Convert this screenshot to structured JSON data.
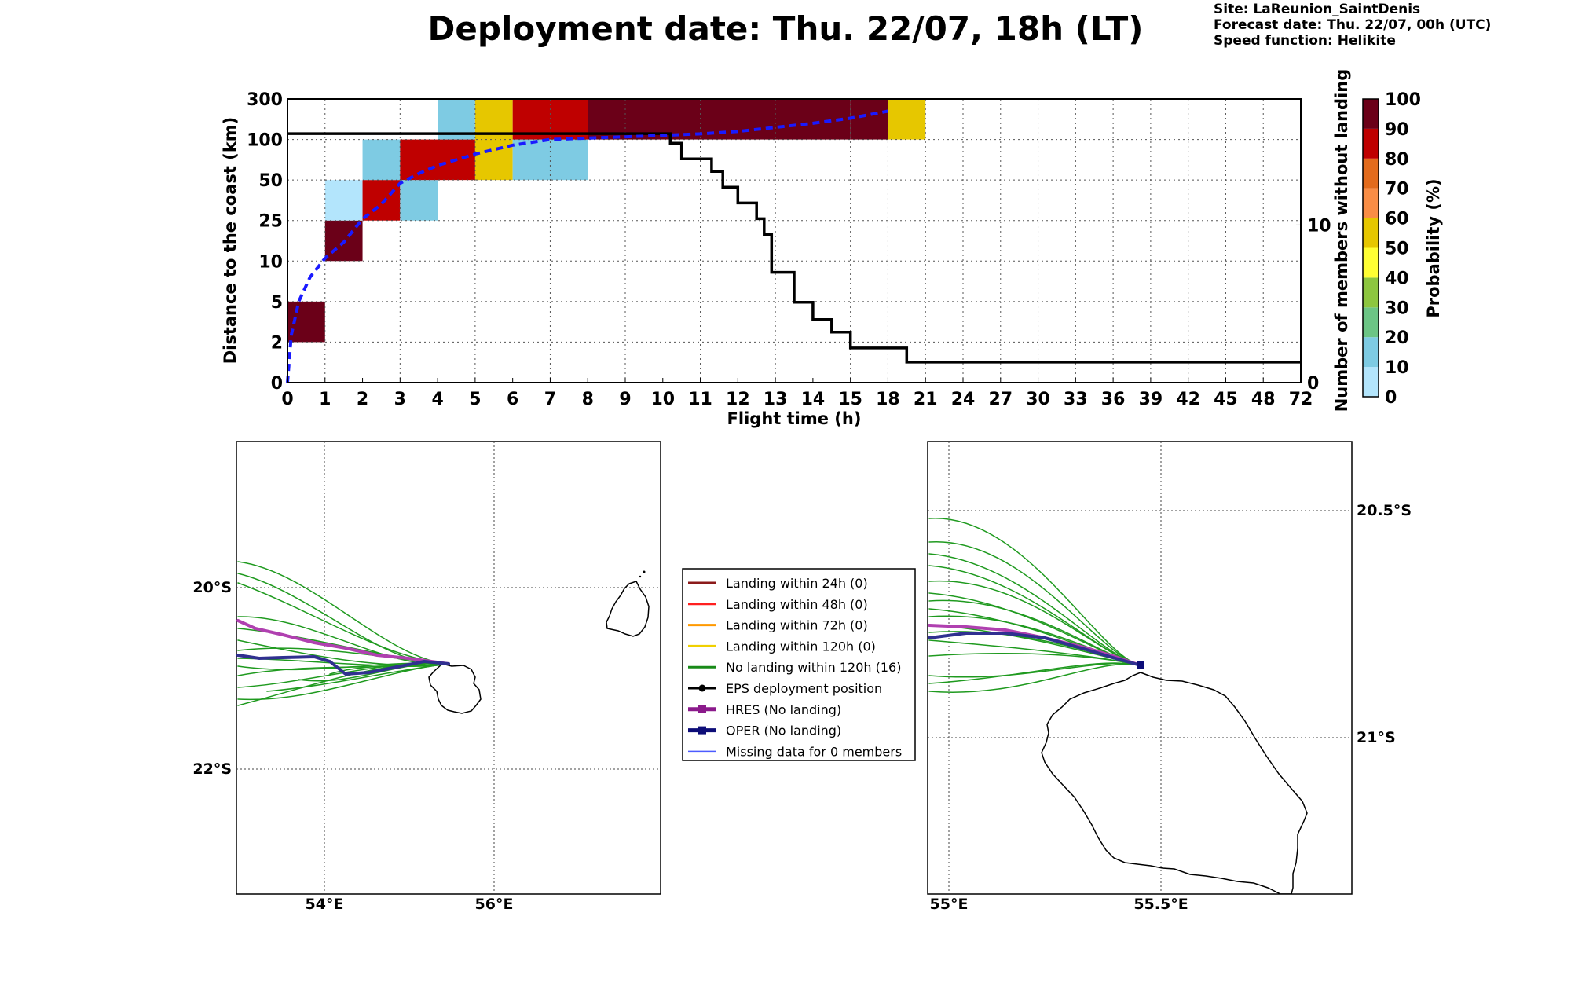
{
  "title": "Deployment date: Thu. 22/07, 18h (LT)",
  "info": {
    "site": "Site: LaReunion_SaintDenis",
    "forecast": "Forecast date: Thu. 22/07, 00h (UTC)",
    "speed": "Speed function: Helikite"
  },
  "chart_data": [
    {
      "type": "heatmap",
      "xlabel": "Flight time (h)",
      "ylabel": "Distance to the coast (km)",
      "y2label": "Number of members without landing",
      "x_ticks": [
        "0",
        "1",
        "2",
        "3",
        "4",
        "5",
        "6",
        "7",
        "8",
        "9",
        "10",
        "11",
        "12",
        "13",
        "14",
        "15",
        "18",
        "21",
        "24",
        "27",
        "30",
        "33",
        "36",
        "39",
        "42",
        "45",
        "48",
        "72"
      ],
      "y_ticks": [
        "0",
        "2",
        "5",
        "10",
        "25",
        "50",
        "100",
        "300"
      ],
      "y2_ticks": [
        "0",
        "10"
      ],
      "y2lim": [
        0,
        18
      ],
      "colorbar": {
        "label": "Probability (%)",
        "ticks": [
          "0",
          "10",
          "20",
          "30",
          "40",
          "50",
          "60",
          "70",
          "80",
          "90",
          "100"
        ],
        "colors": [
          "#b3e5fc",
          "#7ecbe3",
          "#6cc585",
          "#8dc63f",
          "#ffff33",
          "#e6c700",
          "#f98d45",
          "#e36b1c",
          "#bf0000",
          "#6b0018"
        ]
      },
      "cells": [
        {
          "x0": 0,
          "x1": 1,
          "band": 1,
          "prob": 95
        },
        {
          "x0": 1,
          "x1": 2,
          "band": 3,
          "prob": 95
        },
        {
          "x0": 1,
          "x1": 2,
          "band": 4,
          "prob": 5
        },
        {
          "x0": 2,
          "x1": 3,
          "band": 4,
          "prob": 85
        },
        {
          "x0": 2,
          "x1": 3,
          "band": 5,
          "prob": 15
        },
        {
          "x0": 3,
          "x1": 4,
          "band": 4,
          "prob": 15
        },
        {
          "x0": 3,
          "x1": 4,
          "band": 5,
          "prob": 85
        },
        {
          "x0": 4,
          "x1": 5,
          "band": 5,
          "prob": 85
        },
        {
          "x0": 4,
          "x1": 5,
          "band": 6,
          "prob": 15
        },
        {
          "x0": 5,
          "x1": 6,
          "band": 5,
          "prob": 55
        },
        {
          "x0": 5,
          "x1": 6,
          "band": 6,
          "prob": 55
        },
        {
          "x0": 6,
          "x1": 8,
          "band": 5,
          "prob": 15
        },
        {
          "x0": 6,
          "x1": 8,
          "band": 6,
          "prob": 85
        },
        {
          "x0": 8,
          "x1": 15,
          "band": 6,
          "prob": 95
        },
        {
          "x0": 15,
          "x1": 18,
          "band": 6,
          "prob": 95
        },
        {
          "x0": 18,
          "x1": 21,
          "band": 6,
          "prob": 55
        }
      ],
      "members_without_landing_step": [
        {
          "x": 0,
          "y": 15.8
        },
        {
          "x": 10.2,
          "y": 15.8
        },
        {
          "x": 10.2,
          "y": 15.2
        },
        {
          "x": 10.5,
          "y": 15.2
        },
        {
          "x": 10.5,
          "y": 14.2
        },
        {
          "x": 11.3,
          "y": 14.2
        },
        {
          "x": 11.3,
          "y": 13.4
        },
        {
          "x": 11.6,
          "y": 13.4
        },
        {
          "x": 11.6,
          "y": 12.4
        },
        {
          "x": 12.0,
          "y": 12.4
        },
        {
          "x": 12.0,
          "y": 11.4
        },
        {
          "x": 12.5,
          "y": 11.4
        },
        {
          "x": 12.5,
          "y": 10.4
        },
        {
          "x": 12.7,
          "y": 10.4
        },
        {
          "x": 12.7,
          "y": 9.4
        },
        {
          "x": 12.9,
          "y": 9.4
        },
        {
          "x": 12.9,
          "y": 7.0
        },
        {
          "x": 13.5,
          "y": 7.0
        },
        {
          "x": 13.5,
          "y": 5.1
        },
        {
          "x": 14.0,
          "y": 5.1
        },
        {
          "x": 14.0,
          "y": 4.0
        },
        {
          "x": 14.5,
          "y": 4.0
        },
        {
          "x": 14.5,
          "y": 3.2
        },
        {
          "x": 15.0,
          "y": 3.2
        },
        {
          "x": 15.0,
          "y": 2.2
        },
        {
          "x": 19.5,
          "y": 2.2
        },
        {
          "x": 19.5,
          "y": 1.3
        },
        {
          "x": 72,
          "y": 1.3
        }
      ],
      "mean_distance_km": [
        {
          "x": 0,
          "y": 0
        },
        {
          "x": 0.1,
          "y": 2.5
        },
        {
          "x": 0.3,
          "y": 5
        },
        {
          "x": 0.6,
          "y": 8
        },
        {
          "x": 1.0,
          "y": 11
        },
        {
          "x": 1.5,
          "y": 17
        },
        {
          "x": 2.0,
          "y": 26
        },
        {
          "x": 2.5,
          "y": 35
        },
        {
          "x": 3.0,
          "y": 48
        },
        {
          "x": 3.5,
          "y": 58
        },
        {
          "x": 4.0,
          "y": 68
        },
        {
          "x": 5.0,
          "y": 82
        },
        {
          "x": 6.0,
          "y": 93
        },
        {
          "x": 7.0,
          "y": 100
        },
        {
          "x": 8.0,
          "y": 107
        },
        {
          "x": 9.0,
          "y": 113
        },
        {
          "x": 10.0,
          "y": 120
        },
        {
          "x": 11.0,
          "y": 128
        },
        {
          "x": 12.0,
          "y": 140
        },
        {
          "x": 13.0,
          "y": 160
        },
        {
          "x": 14.0,
          "y": 180
        },
        {
          "x": 15.0,
          "y": 205
        },
        {
          "x": 18.0,
          "y": 240
        }
      ]
    },
    {
      "type": "map",
      "name": "left_map",
      "lon_ticks": [
        "54°E",
        "56°E"
      ],
      "lat_ticks": [
        "20°S",
        "22°S"
      ],
      "lon_range": [
        53.0,
        58.0
      ],
      "lat_range": [
        -23.4,
        -18.4
      ]
    },
    {
      "type": "map",
      "name": "right_map",
      "lon_ticks": [
        "55°E",
        "55.5°E"
      ],
      "lat_ticks": [
        "20.5°S",
        "21°S"
      ],
      "lon_range": [
        54.95,
        55.95
      ],
      "lat_range": [
        -21.35,
        -20.35
      ]
    }
  ],
  "legend": [
    {
      "label": "Landing within 24h (0)",
      "color": "#8b1a1a",
      "kind": "line",
      "width": 3
    },
    {
      "label": "Landing within 48h (0)",
      "color": "#ff2020",
      "kind": "line",
      "width": 3
    },
    {
      "label": "Landing within 72h (0)",
      "color": "#ff9900",
      "kind": "line",
      "width": 3
    },
    {
      "label": "Landing within 120h (0)",
      "color": "#f0d000",
      "kind": "line",
      "width": 3
    },
    {
      "label": "No landing within 120h (16)",
      "color": "#188a18",
      "kind": "line",
      "width": 3
    },
    {
      "label": "EPS deployment position",
      "color": "#000000",
      "kind": "circle",
      "width": 3
    },
    {
      "label": "HRES (No landing)",
      "color": "#8b1a8b",
      "kind": "square",
      "width": 5
    },
    {
      "label": "OPER (No landing)",
      "color": "#0d0d78",
      "kind": "square",
      "width": 5
    },
    {
      "label": "Missing data for 0 members",
      "color": "#4c5cff",
      "kind": "line",
      "width": 1.5
    }
  ]
}
